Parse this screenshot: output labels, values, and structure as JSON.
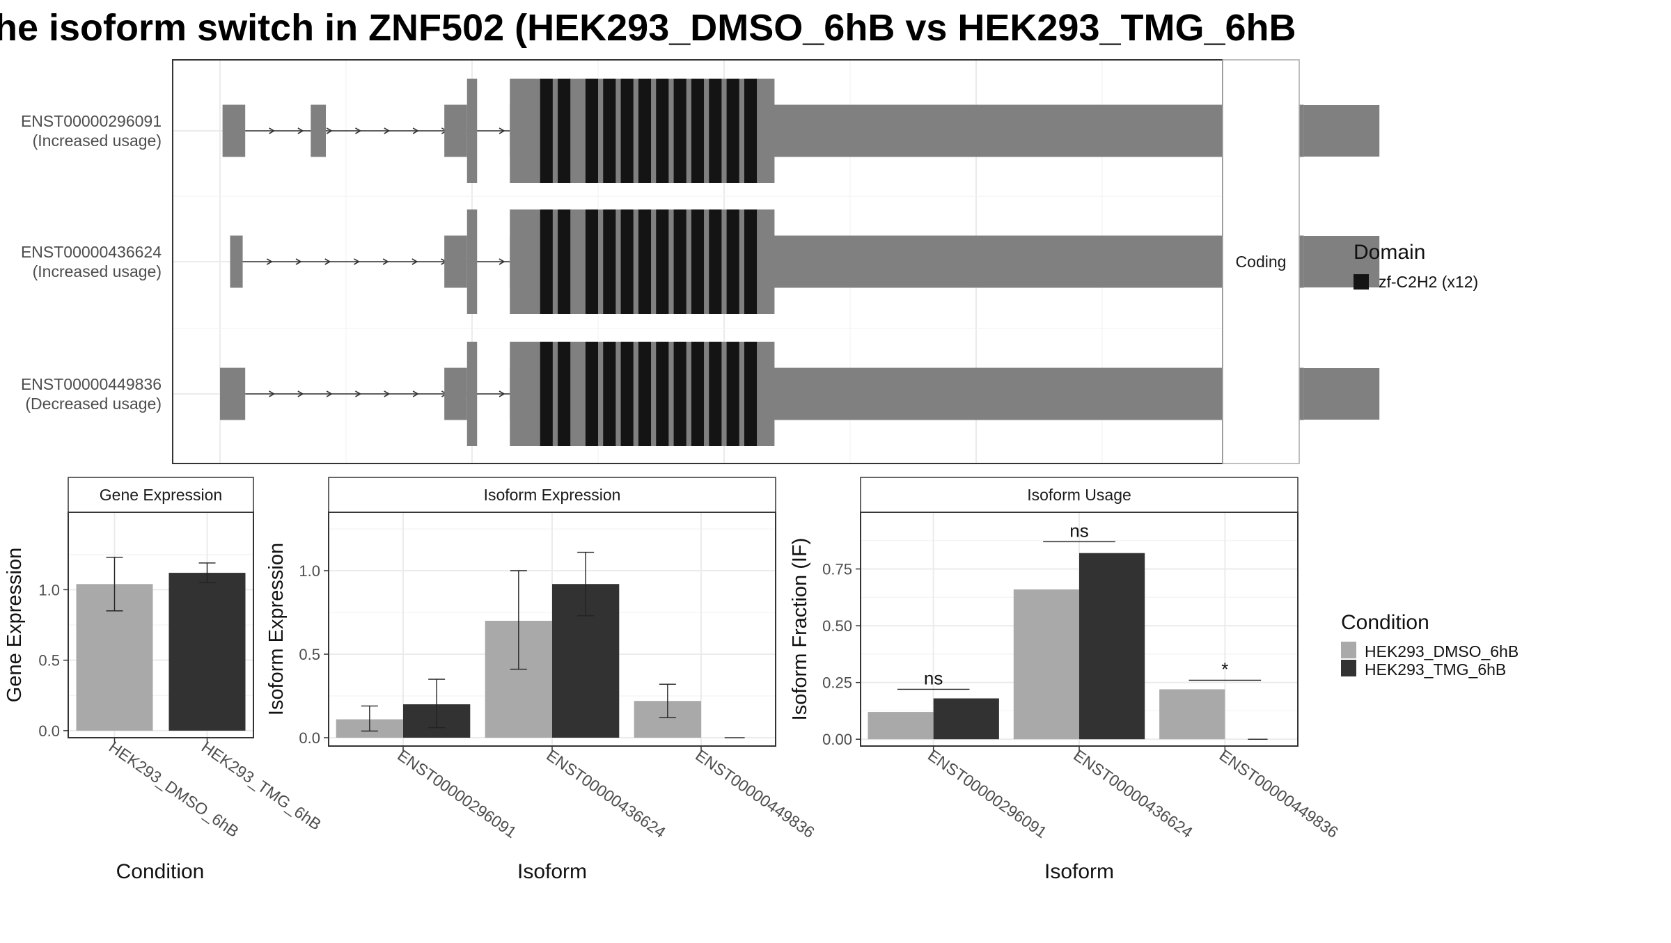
{
  "title": "he isoform switch in ZNF502 (HEK293_DMSO_6hB vs HEK293_TMG_6hB",
  "colors": {
    "exon": "#808080",
    "domain": "#141414",
    "dmso": "#a9a9a9",
    "tmg": "#323232",
    "grid": "#ebebeb",
    "panel_border": "#333333"
  },
  "structure": {
    "strip_label": "Coding",
    "transcripts": [
      {
        "id": "ENST00000296091",
        "usage": "(Increased usage)",
        "exons": [
          [
            0.01,
            0.1,
            "big"
          ],
          [
            0.36,
            0.42,
            "big"
          ],
          [
            0.89,
            0.98,
            "big"
          ],
          [
            0.98,
            1.02,
            "tall"
          ],
          [
            1.15,
            4.3,
            "big"
          ]
        ],
        "utr3": [
          4.3,
          4.6
        ],
        "arrows_from": 0.1,
        "arrows_to": 1.15
      },
      {
        "id": "ENST00000436624",
        "usage": "(Increased usage)",
        "exons": [
          [
            0.04,
            0.09,
            "big"
          ],
          [
            0.89,
            0.98,
            "big"
          ],
          [
            0.98,
            1.02,
            "tall"
          ],
          [
            1.15,
            4.3,
            "big"
          ]
        ],
        "utr3": [
          4.3,
          4.6
        ],
        "arrows_from": 0.09,
        "arrows_to": 1.15
      },
      {
        "id": "ENST00000449836",
        "usage": "(Decreased usage)",
        "exons": [
          [
            0.0,
            0.1,
            "big"
          ],
          [
            0.89,
            0.98,
            "big"
          ],
          [
            0.98,
            1.02,
            "tall"
          ],
          [
            1.15,
            4.3,
            "big"
          ]
        ],
        "utr3": [
          4.3,
          4.6
        ],
        "arrows_from": 0.1,
        "arrows_to": 1.15
      }
    ],
    "domains": [
      [
        1.27,
        1.32
      ],
      [
        1.34,
        1.39
      ],
      [
        1.45,
        1.5
      ],
      [
        1.52,
        1.57
      ],
      [
        1.59,
        1.64
      ],
      [
        1.66,
        1.71
      ],
      [
        1.73,
        1.78
      ],
      [
        1.8,
        1.85
      ],
      [
        1.87,
        1.92
      ],
      [
        1.94,
        1.99
      ],
      [
        2.01,
        2.06
      ],
      [
        2.08,
        2.13
      ]
    ],
    "legend_title": "Domain",
    "legend_items": [
      {
        "label": "zf-C2H2 (x12)",
        "color": "#141414"
      }
    ]
  },
  "chart_data": [
    {
      "type": "bar",
      "panel_title": "Gene Expression",
      "ylabel": "Gene Expression",
      "xlabel": "Condition",
      "categories": [
        "HEK293_DMSO_6hB",
        "HEK293_TMG_6hB"
      ],
      "values": [
        1.04,
        1.12
      ],
      "errors": [
        [
          0.85,
          1.23
        ],
        [
          1.05,
          1.19
        ]
      ],
      "ylim": [
        -0.05,
        1.55
      ],
      "yticks": [
        0.0,
        0.5,
        1.0
      ],
      "ytick_labels": [
        "0.0",
        "0.5",
        "1.0"
      ]
    },
    {
      "type": "bar",
      "panel_title": "Isoform Expression",
      "ylabel": "Isoform Expression",
      "xlabel": "Isoform",
      "categories": [
        "ENST00000296091",
        "ENST00000436624",
        "ENST00000449836"
      ],
      "series": [
        {
          "name": "HEK293_DMSO_6hB",
          "values": [
            0.11,
            0.7,
            0.22
          ],
          "errors": [
            [
              0.04,
              0.19
            ],
            [
              0.41,
              1.0
            ],
            [
              0.12,
              0.32
            ]
          ]
        },
        {
          "name": "HEK293_TMG_6hB",
          "values": [
            0.2,
            0.92,
            0.0
          ],
          "errors": [
            [
              0.06,
              0.35
            ],
            [
              0.73,
              1.11
            ],
            null
          ]
        }
      ],
      "ylim": [
        -0.05,
        1.35
      ],
      "yticks": [
        0.0,
        0.5,
        1.0
      ],
      "ytick_labels": [
        "0.0",
        "0.5",
        "1.0"
      ]
    },
    {
      "type": "bar",
      "panel_title": "Isoform Usage",
      "ylabel": "Isoform Fraction (IF)",
      "xlabel": "Isoform",
      "categories": [
        "ENST00000296091",
        "ENST00000436624",
        "ENST00000449836"
      ],
      "series": [
        {
          "name": "HEK293_DMSO_6hB",
          "values": [
            0.12,
            0.66,
            0.22
          ]
        },
        {
          "name": "HEK293_TMG_6hB",
          "values": [
            0.18,
            0.82,
            0.0
          ]
        }
      ],
      "significance": [
        {
          "label": "ns",
          "y": 0.22
        },
        {
          "label": "ns",
          "y": 0.87
        },
        {
          "label": "*",
          "y": 0.26
        }
      ],
      "ylim": [
        -0.03,
        1.0
      ],
      "yticks": [
        0.0,
        0.25,
        0.5,
        0.75
      ],
      "ytick_labels": [
        "0.00",
        "0.25",
        "0.50",
        "0.75"
      ]
    }
  ],
  "condition_legend": {
    "title": "Condition",
    "items": [
      {
        "label": "HEK293_DMSO_6hB",
        "color": "#a9a9a9"
      },
      {
        "label": "HEK293_TMG_6hB",
        "color": "#323232"
      }
    ]
  }
}
